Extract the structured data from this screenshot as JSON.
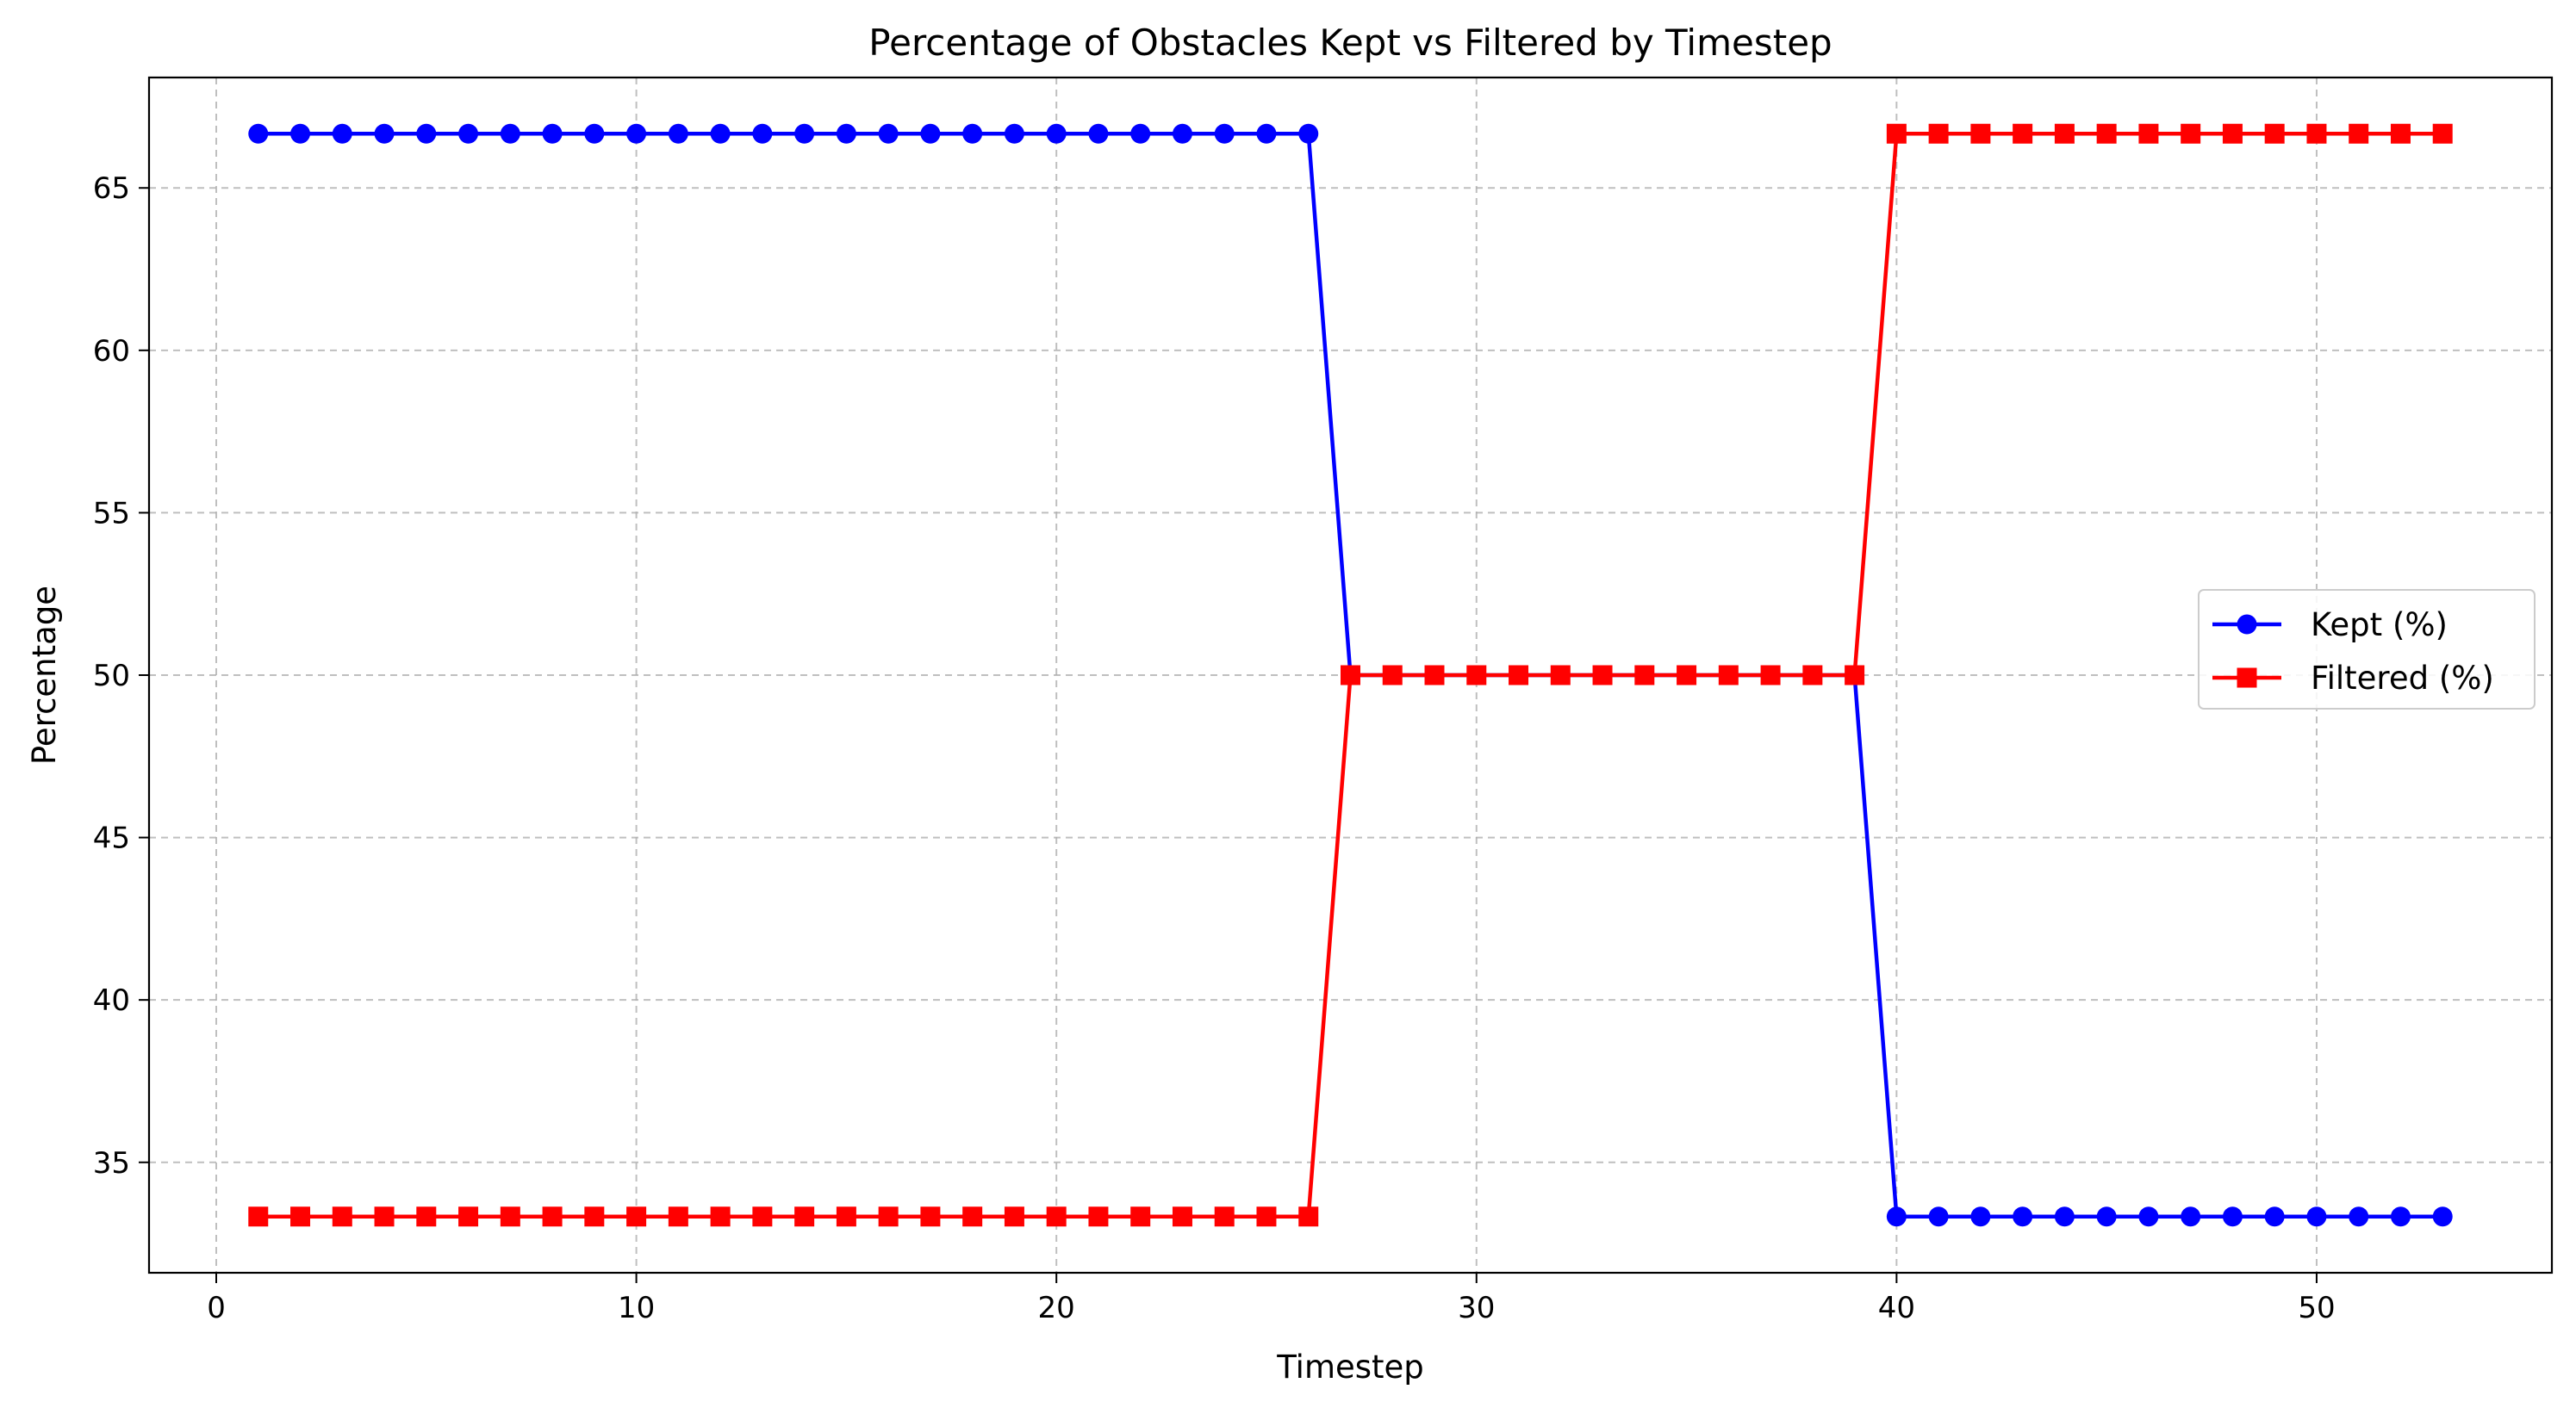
{
  "chart_data": {
    "type": "line",
    "title": "Percentage of Obstacles Kept vs Filtered by Timestep",
    "xlabel": "Timestep",
    "ylabel": "Percentage",
    "xlim": [
      -1.6,
      55.6
    ],
    "ylim": [
      31.6,
      68.4
    ],
    "grid": true,
    "legend_position": "center-right",
    "x_ticks": [
      0,
      10,
      20,
      30,
      40,
      50
    ],
    "y_ticks": [
      35,
      40,
      45,
      50,
      55,
      60,
      65
    ],
    "x": [
      1,
      2,
      3,
      4,
      5,
      6,
      7,
      8,
      9,
      10,
      11,
      12,
      13,
      14,
      15,
      16,
      17,
      18,
      19,
      20,
      21,
      22,
      23,
      24,
      25,
      26,
      27,
      28,
      29,
      30,
      31,
      32,
      33,
      34,
      35,
      36,
      37,
      38,
      39,
      40,
      41,
      42,
      43,
      44,
      45,
      46,
      47,
      48,
      49,
      50,
      51,
      52,
      53
    ],
    "series": [
      {
        "name": "Kept (%)",
        "color": "#0000ff",
        "marker": "circle",
        "values": [
          66.67,
          66.67,
          66.67,
          66.67,
          66.67,
          66.67,
          66.67,
          66.67,
          66.67,
          66.67,
          66.67,
          66.67,
          66.67,
          66.67,
          66.67,
          66.67,
          66.67,
          66.67,
          66.67,
          66.67,
          66.67,
          66.67,
          66.67,
          66.67,
          66.67,
          66.67,
          50,
          50,
          50,
          50,
          50,
          50,
          50,
          50,
          50,
          50,
          50,
          50,
          50,
          33.33,
          33.33,
          33.33,
          33.33,
          33.33,
          33.33,
          33.33,
          33.33,
          33.33,
          33.33,
          33.33,
          33.33,
          33.33,
          33.33
        ]
      },
      {
        "name": "Filtered (%)",
        "color": "#ff0000",
        "marker": "square",
        "values": [
          33.33,
          33.33,
          33.33,
          33.33,
          33.33,
          33.33,
          33.33,
          33.33,
          33.33,
          33.33,
          33.33,
          33.33,
          33.33,
          33.33,
          33.33,
          33.33,
          33.33,
          33.33,
          33.33,
          33.33,
          33.33,
          33.33,
          33.33,
          33.33,
          33.33,
          33.33,
          50,
          50,
          50,
          50,
          50,
          50,
          50,
          50,
          50,
          50,
          50,
          50,
          50,
          66.67,
          66.67,
          66.67,
          66.67,
          66.67,
          66.67,
          66.67,
          66.67,
          66.67,
          66.67,
          66.67,
          66.67,
          66.67,
          66.67
        ]
      }
    ]
  }
}
